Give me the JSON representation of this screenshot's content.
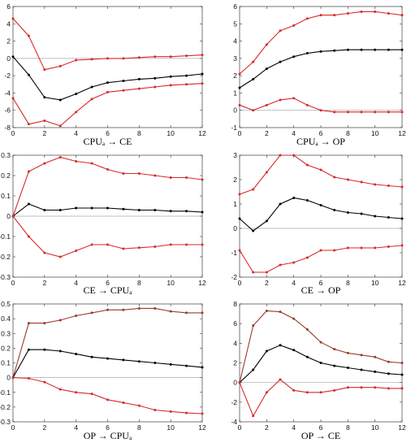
{
  "colors": {
    "mean": "#000000",
    "upper": "#d62a2a",
    "lower": "#d62a2a",
    "upper_brown": "#9b3a2c",
    "zero_line": "#aaaaaa",
    "frame": "#555555"
  },
  "chart_data": [
    {
      "type": "line",
      "title": "CPUₐ → CE",
      "x": [
        0,
        1,
        2,
        3,
        4,
        5,
        6,
        7,
        8,
        9,
        10,
        11,
        12
      ],
      "xticks": [
        0,
        2,
        4,
        6,
        8,
        10,
        12
      ],
      "xlim": [
        0,
        12
      ],
      "ylim": [
        -8,
        6
      ],
      "yticks": [
        -8,
        -6,
        -4,
        -2,
        0,
        2,
        4,
        6
      ],
      "series": [
        {
          "role": "upper",
          "color": "#d62a2a",
          "values": [
            4.6,
            2.6,
            -1.3,
            -0.9,
            -0.2,
            -0.1,
            0.0,
            0.0,
            0.1,
            0.2,
            0.2,
            0.3,
            0.4
          ]
        },
        {
          "role": "mean",
          "color": "#000000",
          "values": [
            0.2,
            -1.9,
            -4.5,
            -4.8,
            -4.1,
            -3.3,
            -2.8,
            -2.6,
            -2.4,
            -2.3,
            -2.1,
            -2.0,
            -1.8
          ]
        },
        {
          "role": "lower",
          "color": "#d62a2a",
          "values": [
            -4.6,
            -7.6,
            -7.2,
            -7.8,
            -6.2,
            -4.7,
            -3.9,
            -3.7,
            -3.5,
            -3.3,
            -3.1,
            -3.0,
            -2.9
          ]
        }
      ]
    },
    {
      "type": "line",
      "title": "CPUₐ → OP",
      "x": [
        0,
        1,
        2,
        3,
        4,
        5,
        6,
        7,
        8,
        9,
        10,
        11,
        12
      ],
      "xticks": [
        0,
        2,
        4,
        6,
        8,
        10,
        12
      ],
      "xlim": [
        0,
        12
      ],
      "ylim": [
        -1,
        6
      ],
      "yticks": [
        -1,
        0,
        1,
        2,
        3,
        4,
        5,
        6
      ],
      "series": [
        {
          "role": "upper",
          "color": "#d62a2a",
          "values": [
            2.1,
            2.8,
            3.8,
            4.6,
            4.9,
            5.3,
            5.5,
            5.5,
            5.6,
            5.7,
            5.7,
            5.6,
            5.5
          ]
        },
        {
          "role": "mean",
          "color": "#000000",
          "values": [
            1.3,
            1.8,
            2.4,
            2.8,
            3.1,
            3.3,
            3.4,
            3.45,
            3.5,
            3.5,
            3.5,
            3.5,
            3.5
          ]
        },
        {
          "role": "lower",
          "color": "#d62a2a",
          "values": [
            0.3,
            0.0,
            0.3,
            0.6,
            0.7,
            0.3,
            0.0,
            -0.1,
            -0.1,
            -0.1,
            -0.1,
            -0.1,
            -0.1
          ]
        }
      ]
    },
    {
      "type": "line",
      "title": "CE → CPUₐ",
      "x": [
        0,
        1,
        2,
        3,
        4,
        5,
        6,
        7,
        8,
        9,
        10,
        11,
        12
      ],
      "xticks": [
        0,
        2,
        4,
        6,
        8,
        10,
        12
      ],
      "xlim": [
        0,
        12
      ],
      "ylim": [
        -0.3,
        0.3
      ],
      "yticks": [
        -0.3,
        -0.2,
        -0.1,
        0,
        0.1,
        0.2,
        0.3
      ],
      "series": [
        {
          "role": "upper",
          "color": "#d62a2a",
          "values": [
            0.0,
            0.22,
            0.26,
            0.29,
            0.27,
            0.26,
            0.23,
            0.21,
            0.21,
            0.2,
            0.19,
            0.19,
            0.18
          ]
        },
        {
          "role": "mean",
          "color": "#000000",
          "values": [
            0.0,
            0.06,
            0.03,
            0.03,
            0.04,
            0.04,
            0.04,
            0.035,
            0.03,
            0.03,
            0.025,
            0.025,
            0.02
          ]
        },
        {
          "role": "lower",
          "color": "#d62a2a",
          "values": [
            0.0,
            -0.1,
            -0.18,
            -0.2,
            -0.17,
            -0.14,
            -0.14,
            -0.16,
            -0.155,
            -0.15,
            -0.14,
            -0.14,
            -0.14
          ]
        }
      ]
    },
    {
      "type": "line",
      "title": "CE → OP",
      "x": [
        0,
        1,
        2,
        3,
        4,
        5,
        6,
        7,
        8,
        9,
        10,
        11,
        12
      ],
      "xticks": [
        0,
        2,
        4,
        6,
        8,
        10,
        12
      ],
      "xlim": [
        0,
        12
      ],
      "ylim": [
        -2,
        3
      ],
      "yticks": [
        -2,
        -1,
        0,
        1,
        2,
        3
      ],
      "series": [
        {
          "role": "upper",
          "color": "#d62a2a",
          "values": [
            1.4,
            1.6,
            2.3,
            3.0,
            3.0,
            2.6,
            2.4,
            2.1,
            2.0,
            1.9,
            1.8,
            1.75,
            1.7
          ]
        },
        {
          "role": "mean",
          "color": "#000000",
          "values": [
            0.4,
            -0.1,
            0.3,
            1.0,
            1.25,
            1.15,
            0.95,
            0.75,
            0.65,
            0.6,
            0.5,
            0.45,
            0.4
          ]
        },
        {
          "role": "lower",
          "color": "#d62a2a",
          "values": [
            -0.9,
            -1.8,
            -1.8,
            -1.5,
            -1.4,
            -1.2,
            -0.9,
            -0.9,
            -0.8,
            -0.8,
            -0.8,
            -0.75,
            -0.7
          ]
        }
      ]
    },
    {
      "type": "line",
      "title": "OP → CPUₐ",
      "x": [
        0,
        1,
        2,
        3,
        4,
        5,
        6,
        7,
        8,
        9,
        10,
        11,
        12
      ],
      "xticks": [
        0,
        2,
        4,
        6,
        8,
        10,
        12
      ],
      "xlim": [
        0,
        12
      ],
      "ylim": [
        -0.3,
        0.5
      ],
      "yticks": [
        -0.3,
        -0.2,
        -0.1,
        0,
        0.1,
        0.2,
        0.3,
        0.4,
        0.5
      ],
      "series": [
        {
          "role": "upper",
          "color": "#9b3a2c",
          "values": [
            0.0,
            0.37,
            0.37,
            0.39,
            0.42,
            0.44,
            0.46,
            0.46,
            0.47,
            0.47,
            0.45,
            0.44,
            0.44
          ]
        },
        {
          "role": "mean",
          "color": "#000000",
          "values": [
            0.0,
            0.19,
            0.19,
            0.18,
            0.16,
            0.14,
            0.13,
            0.12,
            0.11,
            0.1,
            0.09,
            0.08,
            0.07
          ]
        },
        {
          "role": "lower",
          "color": "#d62a2a",
          "values": [
            0.0,
            -0.005,
            -0.03,
            -0.08,
            -0.1,
            -0.11,
            -0.15,
            -0.17,
            -0.19,
            -0.22,
            -0.23,
            -0.24,
            -0.245
          ]
        }
      ]
    },
    {
      "type": "line",
      "title": "OP → CE",
      "x": [
        0,
        1,
        2,
        3,
        4,
        5,
        6,
        7,
        8,
        9,
        10,
        11,
        12
      ],
      "xticks": [
        0,
        2,
        4,
        6,
        8,
        10,
        12
      ],
      "xlim": [
        0,
        12
      ],
      "ylim": [
        -4,
        8
      ],
      "yticks": [
        -4,
        -2,
        0,
        2,
        4,
        6,
        8
      ],
      "series": [
        {
          "role": "upper",
          "color": "#9b3a2c",
          "values": [
            0.0,
            5.8,
            7.3,
            7.2,
            6.5,
            5.4,
            4.1,
            3.4,
            3.0,
            2.8,
            2.6,
            2.1,
            2.0
          ]
        },
        {
          "role": "mean",
          "color": "#000000",
          "values": [
            0.0,
            1.3,
            3.2,
            3.8,
            3.3,
            2.6,
            2.0,
            1.7,
            1.5,
            1.3,
            1.1,
            0.9,
            0.8
          ]
        },
        {
          "role": "lower",
          "color": "#d62a2a",
          "values": [
            0.0,
            -3.4,
            -1.0,
            0.3,
            -0.8,
            -1.0,
            -1.0,
            -0.8,
            -0.5,
            -0.5,
            -0.5,
            -0.6,
            -0.6
          ]
        }
      ]
    }
  ]
}
